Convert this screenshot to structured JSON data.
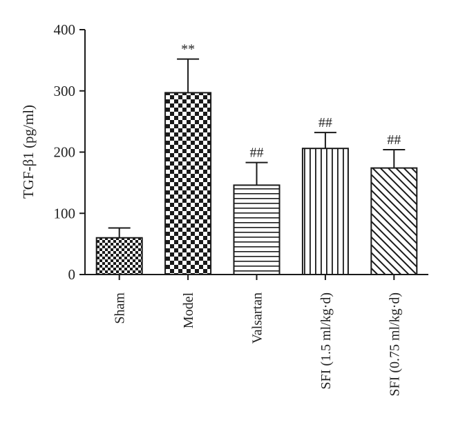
{
  "chart_data": {
    "type": "bar",
    "ylabel": "TGF-β1 (pg/ml)",
    "ylim": [
      0,
      400
    ],
    "yticks": [
      0,
      100,
      200,
      300,
      400
    ],
    "grid": false,
    "categories": [
      "Sham",
      "Model",
      "Valsartan",
      "SFI (1.5 ml/kg·d)",
      "SFI (0.75 ml/kg·d)"
    ],
    "values": [
      60,
      297,
      146,
      206,
      174
    ],
    "errors": [
      16,
      55,
      37,
      26,
      30
    ],
    "annotations": [
      "",
      "**",
      "##",
      "##",
      "##"
    ],
    "patterns": [
      "small-checker",
      "large-checker",
      "horizontal-lines",
      "vertical-lines",
      "diagonal-lines"
    ],
    "colors": {
      "bar_stroke": "#1a1a1a",
      "fill": "#1a1a1a",
      "background": "#ffffff"
    }
  }
}
